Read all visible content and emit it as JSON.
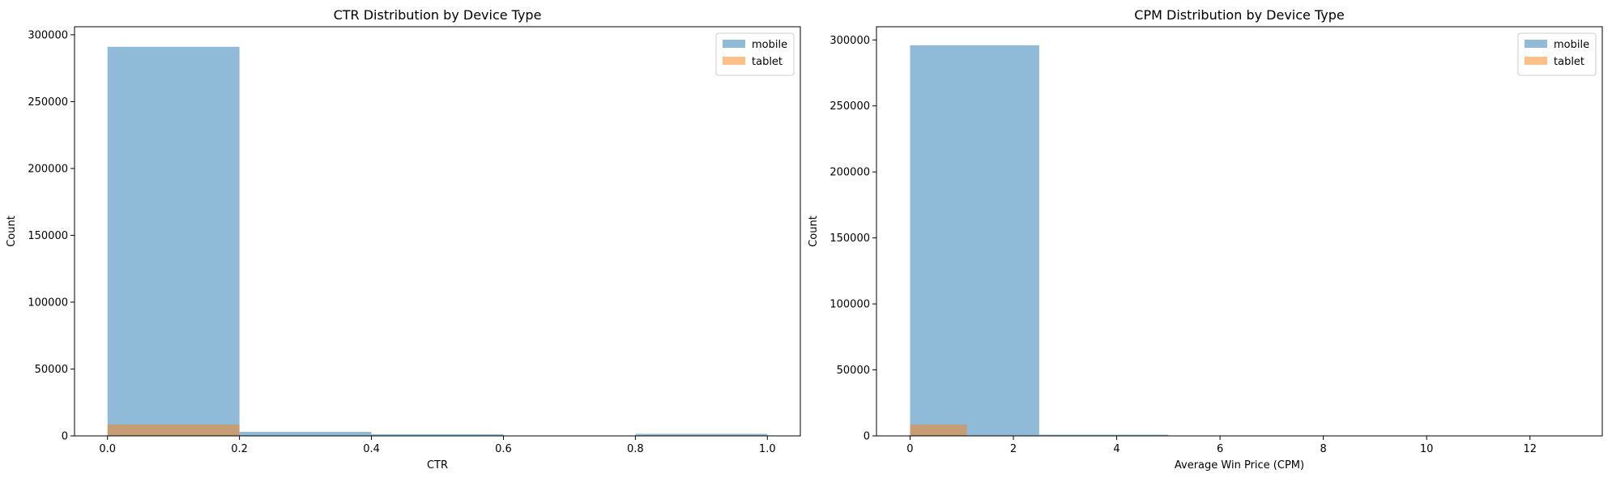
{
  "colors": {
    "mobile": "#1f77b4",
    "tablet": "#ff7f0e",
    "bar_opacity": 0.5
  },
  "chart_data": [
    {
      "type": "histogram",
      "title": "CTR Distribution by Device Type",
      "xlabel": "CTR",
      "ylabel": "Count",
      "xlim": [
        -0.05,
        1.05
      ],
      "ylim": [
        0,
        306000
      ],
      "xticks": [
        0.0,
        0.2,
        0.4,
        0.6,
        0.8,
        1.0
      ],
      "xtick_labels": [
        "0.0",
        "0.2",
        "0.4",
        "0.6",
        "0.8",
        "1.0"
      ],
      "yticks": [
        0,
        50000,
        100000,
        150000,
        200000,
        250000,
        300000
      ],
      "ytick_labels": [
        "0",
        "50000",
        "100000",
        "150000",
        "200000",
        "250000",
        "300000"
      ],
      "legend_position": "upper right",
      "series": [
        {
          "name": "mobile",
          "color_key": "mobile",
          "bins": [
            [
              0.0,
              0.2,
              291000
            ],
            [
              0.2,
              0.4,
              3000
            ],
            [
              0.4,
              0.6,
              1200
            ],
            [
              0.6,
              0.8,
              200
            ],
            [
              0.8,
              1.0,
              1500
            ]
          ]
        },
        {
          "name": "tablet",
          "color_key": "tablet",
          "bins": [
            [
              0.0,
              0.2,
              8500
            ],
            [
              0.2,
              0.4,
              100
            ],
            [
              0.4,
              0.6,
              30
            ],
            [
              0.6,
              0.8,
              10
            ],
            [
              0.8,
              1.0,
              40
            ]
          ]
        }
      ]
    },
    {
      "type": "histogram",
      "title": "CPM Distribution by Device Type",
      "xlabel": "Average Win Price (CPM)",
      "ylabel": "Count",
      "xlim": [
        -0.65,
        13.4
      ],
      "ylim": [
        0,
        310000
      ],
      "xticks": [
        0,
        2,
        4,
        6,
        8,
        10,
        12
      ],
      "xtick_labels": [
        "0",
        "2",
        "4",
        "6",
        "8",
        "10",
        "12"
      ],
      "yticks": [
        0,
        50000,
        100000,
        150000,
        200000,
        250000,
        300000
      ],
      "ytick_labels": [
        "0",
        "50000",
        "100000",
        "150000",
        "200000",
        "250000",
        "300000"
      ],
      "legend_position": "upper right",
      "series": [
        {
          "name": "mobile",
          "color_key": "mobile",
          "bins": [
            [
              0.0,
              2.5,
              296000
            ],
            [
              2.5,
              5.0,
              900
            ],
            [
              5.0,
              7.5,
              150
            ],
            [
              7.5,
              10.0,
              60
            ],
            [
              10.0,
              12.75,
              30
            ]
          ]
        },
        {
          "name": "tablet",
          "color_key": "tablet",
          "bins": [
            [
              0.0,
              1.1,
              8500
            ],
            [
              1.1,
              2.2,
              200
            ],
            [
              2.2,
              3.3,
              60
            ]
          ]
        }
      ]
    }
  ]
}
